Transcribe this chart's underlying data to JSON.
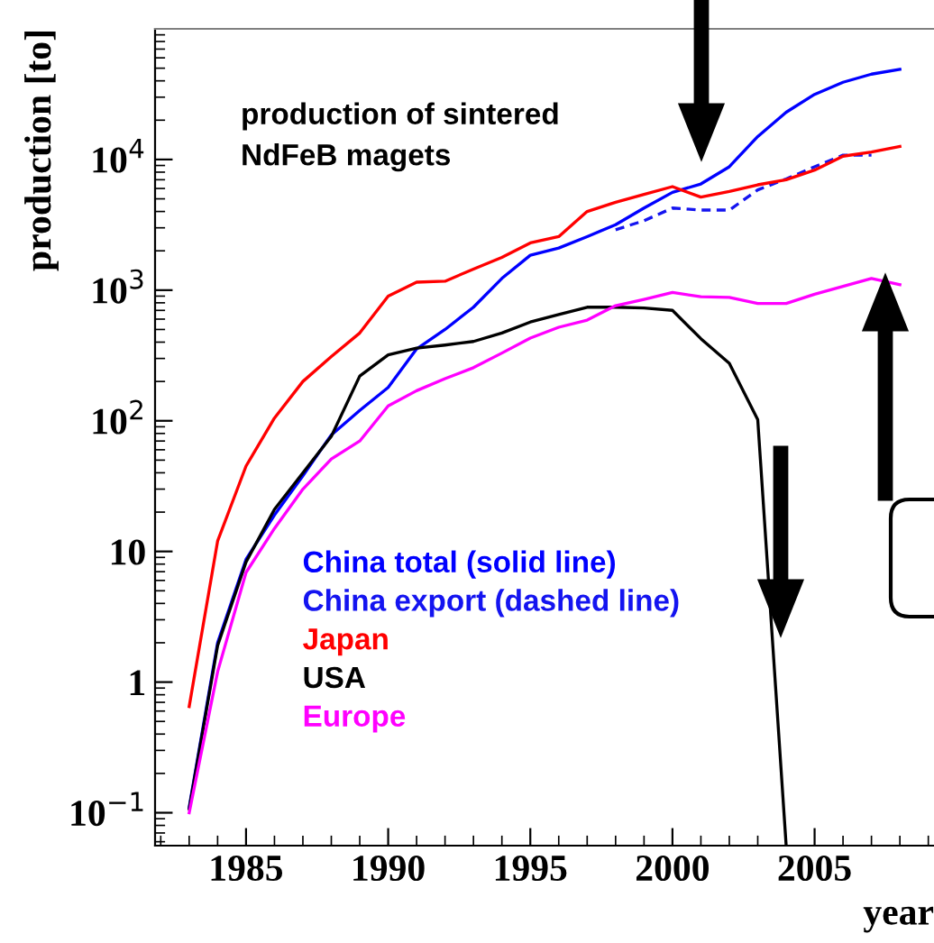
{
  "chart_data": {
    "type": "line",
    "xlabel": "year",
    "ylabel": "production [to]",
    "annotations": [
      "production of sintered\nNdFeB magets"
    ],
    "x": [
      1983,
      1984,
      1985,
      1986,
      1987,
      1988,
      1989,
      1990,
      1991,
      1992,
      1993,
      1994,
      1995,
      1996,
      1997,
      1998,
      1999,
      2000,
      2001,
      2002,
      2003,
      2004,
      2005,
      2006,
      2007,
      2008
    ],
    "series": [
      {
        "name": "China total (solid line)",
        "color": "#0000ff",
        "values": [
          0.11,
          2,
          8.7,
          19,
          38,
          78,
          120,
          180,
          355,
          500,
          740,
          1230,
          1850,
          2100,
          2570,
          3170,
          4250,
          5600,
          6500,
          8800,
          15000,
          23000,
          31500,
          39000,
          45000,
          49000
        ]
      },
      {
        "name": "China export (dashed line)",
        "color": "#1414f0",
        "line_style": "dashed",
        "x": [
          1998,
          1999,
          2000,
          2001,
          2002,
          2003,
          2004,
          2005,
          2006,
          2007
        ],
        "values": [
          2900,
          3400,
          4250,
          4100,
          4100,
          5850,
          7100,
          8800,
          10800,
          10800
        ]
      },
      {
        "name": "Japan",
        "color": "#ff0000",
        "values": [
          0.65,
          12,
          45,
          105,
          200,
          310,
          470,
          900,
          1150,
          1170,
          1450,
          1780,
          2300,
          2570,
          4000,
          4700,
          5400,
          6200,
          5150,
          5700,
          6400,
          7000,
          8300,
          10600,
          11400,
          12600
        ]
      },
      {
        "name": "USA",
        "color": "#000000",
        "values": [
          0.107,
          1.9,
          8.3,
          21,
          40,
          76,
          220,
          320,
          360,
          380,
          405,
          470,
          570,
          650,
          740,
          740,
          730,
          700,
          425,
          275,
          102,
          0.056,
          null,
          null,
          null,
          null
        ]
      },
      {
        "name": "Europe",
        "color": "#ff00ff",
        "values": [
          0.1,
          1.2,
          6.9,
          15,
          30,
          51,
          70,
          130,
          170,
          210,
          255,
          330,
          430,
          520,
          590,
          760,
          850,
          960,
          890,
          880,
          790,
          790,
          930,
          1070,
          1230,
          1100
        ]
      }
    ],
    "log": "y",
    "xlim": [
      1981.8,
      2009.2
    ],
    "ylim": [
      0.056,
      100000
    ],
    "xticks": [
      1985,
      1990,
      1995,
      2000,
      2005
    ],
    "yticks": [
      {
        "value": 0.1,
        "label": "10$^{−1}$"
      },
      1,
      10,
      {
        "value": 100,
        "label": "10$^{2}$"
      },
      {
        "value": 1000,
        "label": "10$^{3}$"
      },
      {
        "value": 10000,
        "label": "10$^{4}$"
      }
    ],
    "grid": false,
    "legend": "bottom left",
    "marker": "none",
    "line_style": "solid"
  }
}
